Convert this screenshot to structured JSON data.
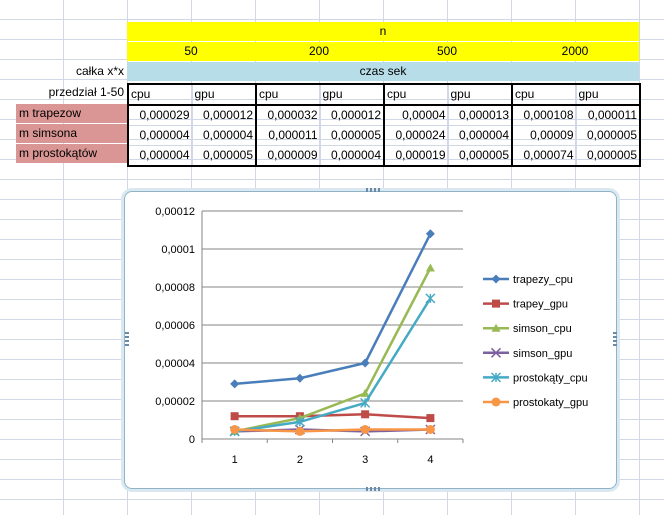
{
  "sheet": {
    "header_n": "n",
    "n_values": [
      "50",
      "200",
      "500",
      "2000"
    ],
    "label_calka": "całka x*x",
    "label_czas": "czas sek",
    "label_przedzial": "przedział 1-50",
    "col_headers": [
      "cpu",
      "gpu",
      "cpu",
      "gpu",
      "cpu",
      "gpu",
      "cpu",
      "gpu"
    ],
    "rows": [
      {
        "label": "m trapezow",
        "values": [
          "0,000029",
          "0,000012",
          "0,000032",
          "0,000012",
          "0,00004",
          "0,000013",
          "0,000108",
          "0,000011"
        ]
      },
      {
        "label": "m simsona",
        "values": [
          "0,000004",
          "0,000004",
          "0,000011",
          "0,000005",
          "0,000024",
          "0,000004",
          "0,00009",
          "0,000005"
        ]
      },
      {
        "label": "m prostokątów",
        "values": [
          "0,000004",
          "0,000005",
          "0,000009",
          "0,000004",
          "0,000019",
          "0,000005",
          "0,000074",
          "0,000005"
        ]
      }
    ]
  },
  "chart_data": {
    "type": "line",
    "x": [
      1,
      2,
      3,
      4
    ],
    "ylim": [
      0,
      0.00012
    ],
    "y_ticks": [
      "0",
      "0,00002",
      "0,00004",
      "0,00006",
      "0,00008",
      "0,0001",
      "0,00012"
    ],
    "x_ticks": [
      "1",
      "2",
      "3",
      "4"
    ],
    "grid": "horizontal",
    "legend_position": "right",
    "series": [
      {
        "name": "trapezy_cpu",
        "color": "#4a7ebb",
        "marker": "diamond",
        "values": [
          2.9e-05,
          3.2e-05,
          4e-05,
          0.000108
        ]
      },
      {
        "name": "trapey_gpu",
        "color": "#be4b48",
        "marker": "square",
        "values": [
          1.2e-05,
          1.2e-05,
          1.3e-05,
          1.1e-05
        ]
      },
      {
        "name": "simson_cpu",
        "color": "#98b954",
        "marker": "triangle",
        "values": [
          4e-06,
          1.1e-05,
          2.4e-05,
          9e-05
        ]
      },
      {
        "name": "simson_gpu",
        "color": "#7d60a0",
        "marker": "x",
        "values": [
          4e-06,
          5e-06,
          4e-06,
          5e-06
        ]
      },
      {
        "name": "prostokąty_cpu",
        "color": "#46aac5",
        "marker": "star",
        "values": [
          4e-06,
          9e-06,
          1.9e-05,
          7.4e-05
        ]
      },
      {
        "name": "prostokaty_gpu",
        "color": "#f79646",
        "marker": "circle",
        "values": [
          5e-06,
          4e-06,
          5e-06,
          5e-06
        ]
      }
    ]
  }
}
